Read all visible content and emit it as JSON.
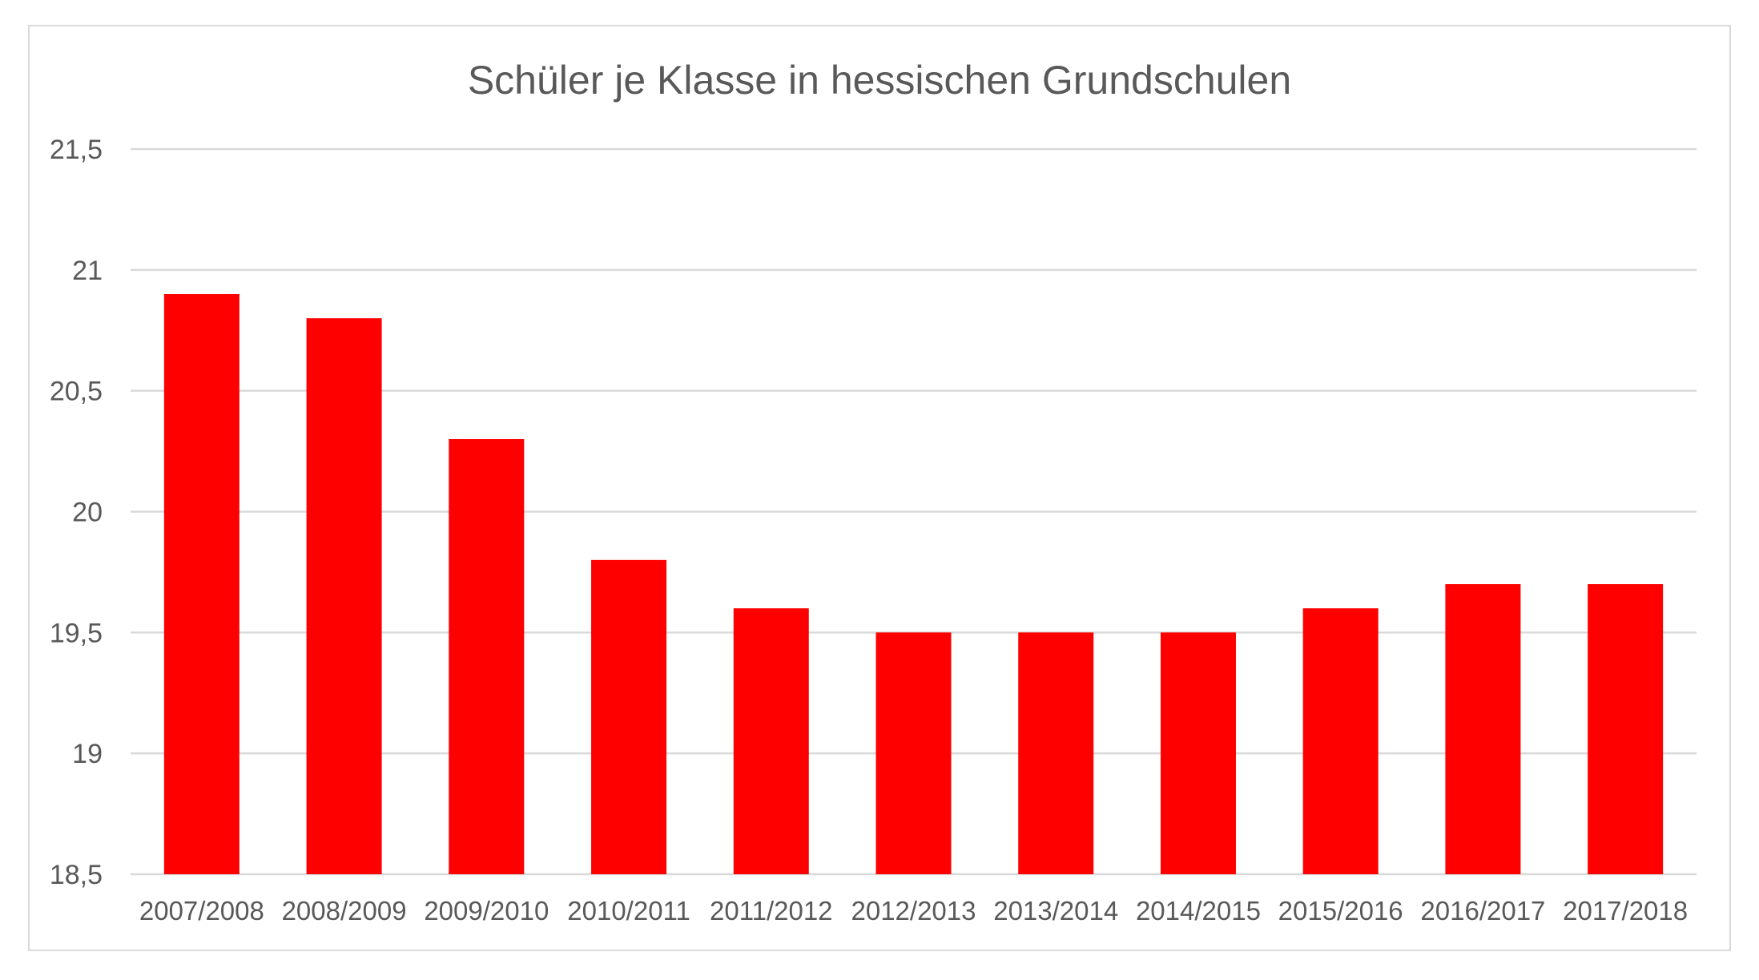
{
  "chart_data": {
    "type": "bar",
    "title": "Schüler je Klasse in hessischen Grundschulen",
    "xlabel": "",
    "ylabel": "",
    "categories": [
      "2007/2008",
      "2008/2009",
      "2009/2010",
      "2010/2011",
      "2011/2012",
      "2012/2013",
      "2013/2014",
      "2014/2015",
      "2015/2016",
      "2016/2017",
      "2017/2018"
    ],
    "values": [
      20.9,
      20.8,
      20.3,
      19.8,
      19.6,
      19.5,
      19.5,
      19.5,
      19.6,
      19.7,
      19.7
    ],
    "ylim": [
      18.5,
      21.5
    ],
    "yticks": [
      18.5,
      19,
      19.5,
      20,
      20.5,
      21,
      21.5
    ],
    "ytick_labels": [
      "18,5",
      "19",
      "19,5",
      "20",
      "20,5",
      "21",
      "21,5"
    ],
    "bar_color": "#ff0000",
    "grid": true,
    "legend": "none"
  }
}
